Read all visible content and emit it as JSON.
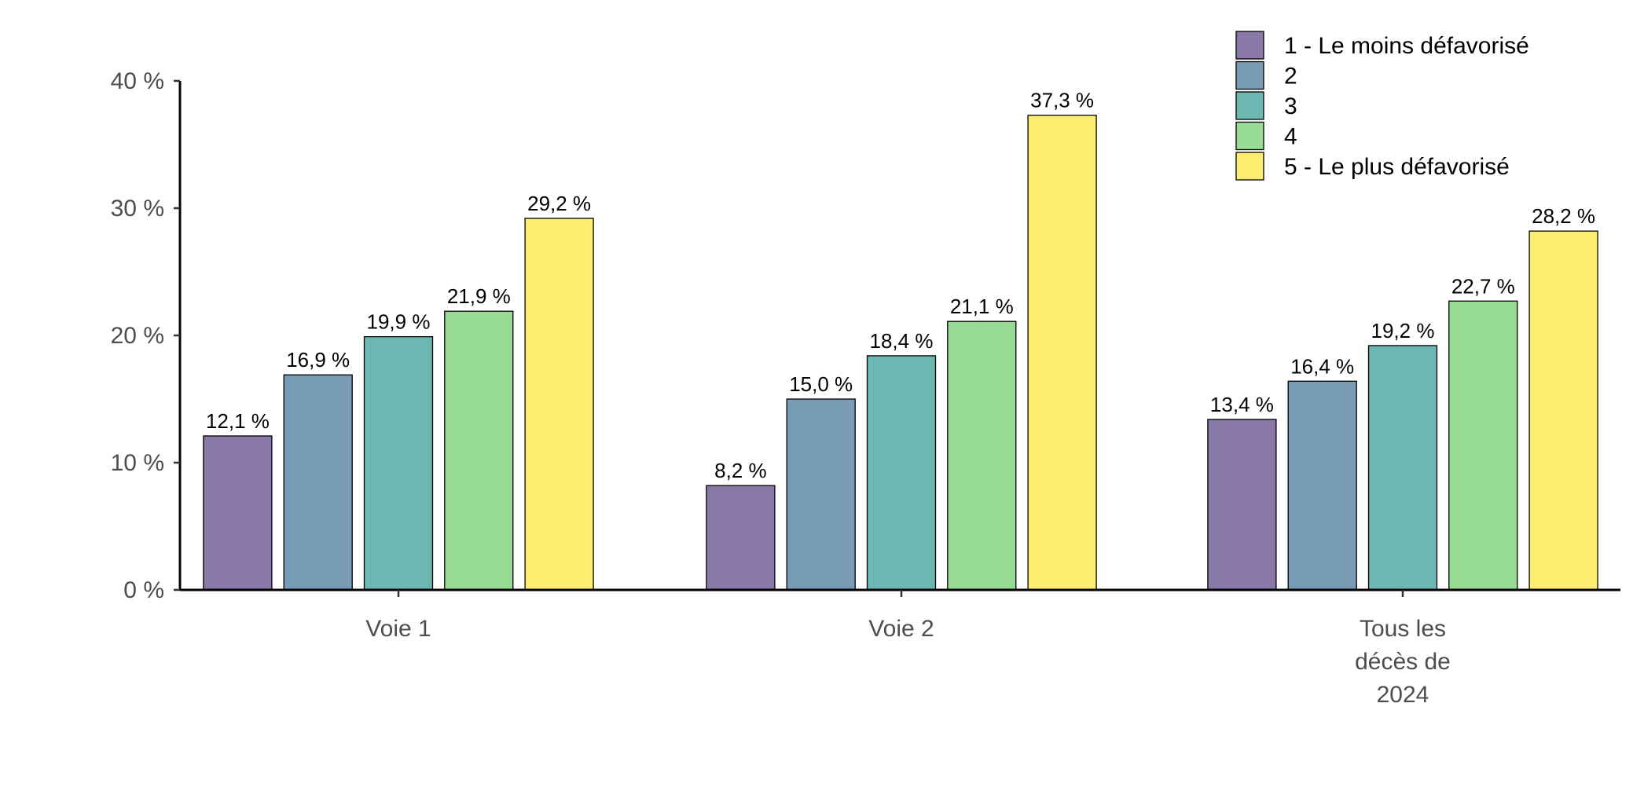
{
  "chart_data": {
    "type": "bar",
    "title": "",
    "xlabel": "",
    "ylabel": "",
    "categories": [
      [
        "Voie 1"
      ],
      [
        "Voie 2"
      ],
      [
        "Tous les",
        "décès de",
        "2024"
      ]
    ],
    "ylim": [
      0,
      40
    ],
    "yticks": [
      0,
      10,
      20,
      30,
      40
    ],
    "ytick_labels": [
      "0 %",
      "10 %",
      "20 %",
      "30 %",
      "40 %"
    ],
    "grid": false,
    "legend_position": "top-right",
    "series": [
      {
        "name": "1 - Le moins défavorisé",
        "color": "#8879a8",
        "values": [
          12.1,
          8.2,
          13.4
        ],
        "labels": [
          "12,1 %",
          "8,2 %",
          "13,4 %"
        ]
      },
      {
        "name": "2",
        "color": "#779cb4",
        "values": [
          16.9,
          15.0,
          16.4
        ],
        "labels": [
          "16,9 %",
          "15,0 %",
          "16,4 %"
        ]
      },
      {
        "name": "3",
        "color": "#6db6b2",
        "values": [
          19.9,
          18.4,
          19.2
        ],
        "labels": [
          "19,9 %",
          "18,4 %",
          "19,2 %"
        ]
      },
      {
        "name": "4",
        "color": "#97db95",
        "values": [
          21.9,
          21.1,
          22.7
        ],
        "labels": [
          "21,9 %",
          "21,1 %",
          "22,7 %"
        ]
      },
      {
        "name": "5 - Le plus défavorisé",
        "color": "#fdee72",
        "values": [
          29.2,
          37.3,
          28.2
        ],
        "labels": [
          "29,2 %",
          "37,3 %",
          "28,2 %"
        ]
      }
    ]
  }
}
